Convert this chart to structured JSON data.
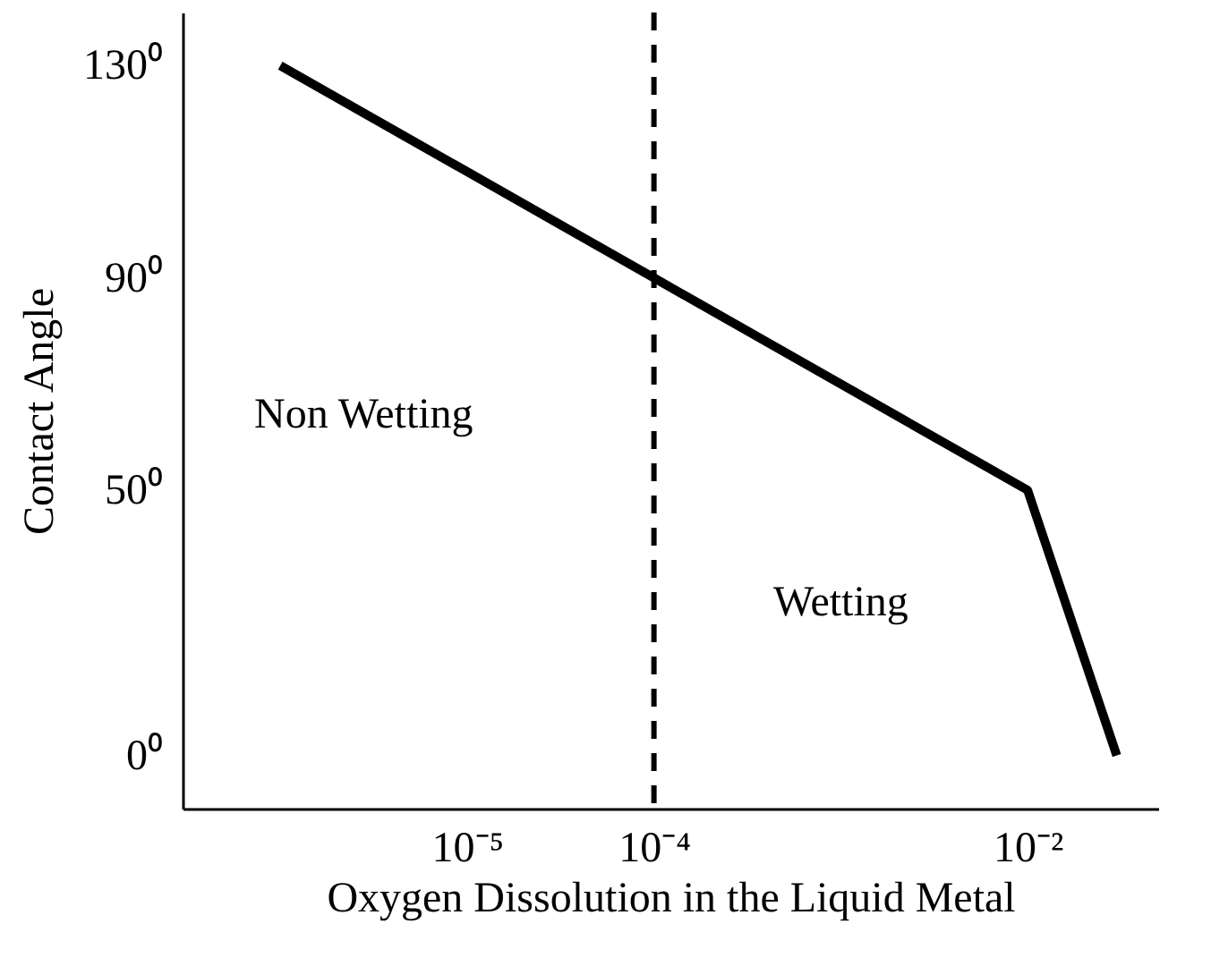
{
  "chart_data": {
    "type": "line",
    "xlabel": "Oxygen Dissolution in the Liquid Metal",
    "ylabel": "Contact Angle",
    "log": "x",
    "x": [
      1e-06,
      0.0001,
      0.01,
      0.03
    ],
    "series": [
      {
        "color": "#000000",
        "values": [
          130,
          90,
          50,
          0
        ]
      }
    ],
    "xlim": [
      3e-07,
      0.05
    ],
    "xticks": [
      {
        "value": 1e-05,
        "label": "10⁻⁵"
      },
      {
        "value": 0.0001,
        "label": "10⁻⁴"
      },
      {
        "value": 0.01,
        "label": "10⁻²"
      }
    ],
    "ylim": [
      -10,
      140
    ],
    "yticks": [
      {
        "value": 0,
        "label": "0⁰"
      },
      {
        "value": 50,
        "label": "50⁰"
      },
      {
        "value": 90,
        "label": "90⁰"
      },
      {
        "value": 130,
        "label": "130⁰"
      }
    ],
    "ref_lines": [
      {
        "axis": "x",
        "value": 0.0001,
        "color": "#000000",
        "line_style": "dashed"
      }
    ],
    "annotations": [
      "Non Wetting",
      "Wetting"
    ],
    "grid": false,
    "marker": "none",
    "line_style": "solid"
  }
}
